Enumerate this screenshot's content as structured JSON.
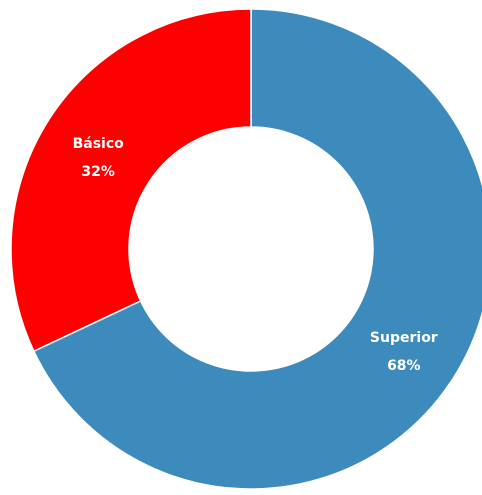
{
  "chart_data": {
    "type": "pie",
    "variant": "donut",
    "title": "",
    "legend": "none",
    "slices": [
      {
        "label": "Superior",
        "value": 68,
        "value_label": "68%",
        "color": "#3d8bbd"
      },
      {
        "label": "Básico",
        "value": 32,
        "value_label": "32%",
        "color": "#ff0000"
      }
    ]
  }
}
